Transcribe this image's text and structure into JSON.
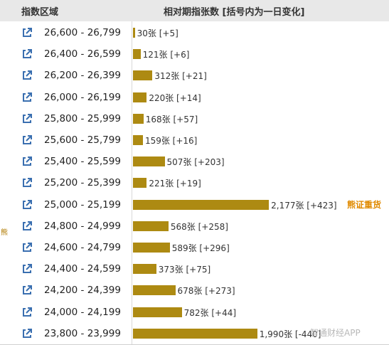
{
  "header": {
    "col_region": "指数区域",
    "col_count": "相对期指张数 [括号内为一日变化]"
  },
  "rows": [
    {
      "range": "26,600 - 26,799",
      "count": 30,
      "label": "30张 [+5]"
    },
    {
      "range": "26,400 - 26,599",
      "count": 121,
      "label": "121张 [+6]"
    },
    {
      "range": "26,200 - 26,399",
      "count": 312,
      "label": "312张 [+21]"
    },
    {
      "range": "26,000 - 26,199",
      "count": 220,
      "label": "220张 [+14]"
    },
    {
      "range": "25,800 - 25,999",
      "count": 168,
      "label": "168张 [+57]"
    },
    {
      "range": "25,600 - 25,799",
      "count": 159,
      "label": "159张 [+16]"
    },
    {
      "range": "25,400 - 25,599",
      "count": 507,
      "label": "507张 [+203]"
    },
    {
      "range": "25,200 - 25,399",
      "count": 221,
      "label": "221张 [+19]"
    },
    {
      "range": "25,000 - 25,199",
      "count": 2177,
      "label": "2,177张 [+423]",
      "tag": "熊证重货"
    },
    {
      "range": "24,800 - 24,999",
      "count": 568,
      "label": "568张 [+258]"
    },
    {
      "range": "24,600 - 24,799",
      "count": 589,
      "label": "589张 [+296]"
    },
    {
      "range": "24,400 - 24,599",
      "count": 373,
      "label": "373张 [+75]"
    },
    {
      "range": "24,200 - 24,399",
      "count": 678,
      "label": "678张 [+273]"
    },
    {
      "range": "24,000 - 24,199",
      "count": 782,
      "label": "782张 [+44]"
    },
    {
      "range": "23,800 - 23,999",
      "count": 1990,
      "label": "1,990张 [-440]"
    }
  ],
  "side_label": "熊",
  "watermark": "智通财经APP",
  "colors": {
    "bar": "#ad8a12",
    "tag": "#e08a00",
    "header_bg": "#e8e8e8"
  },
  "icons": {
    "row_link": "external-link-icon"
  }
}
